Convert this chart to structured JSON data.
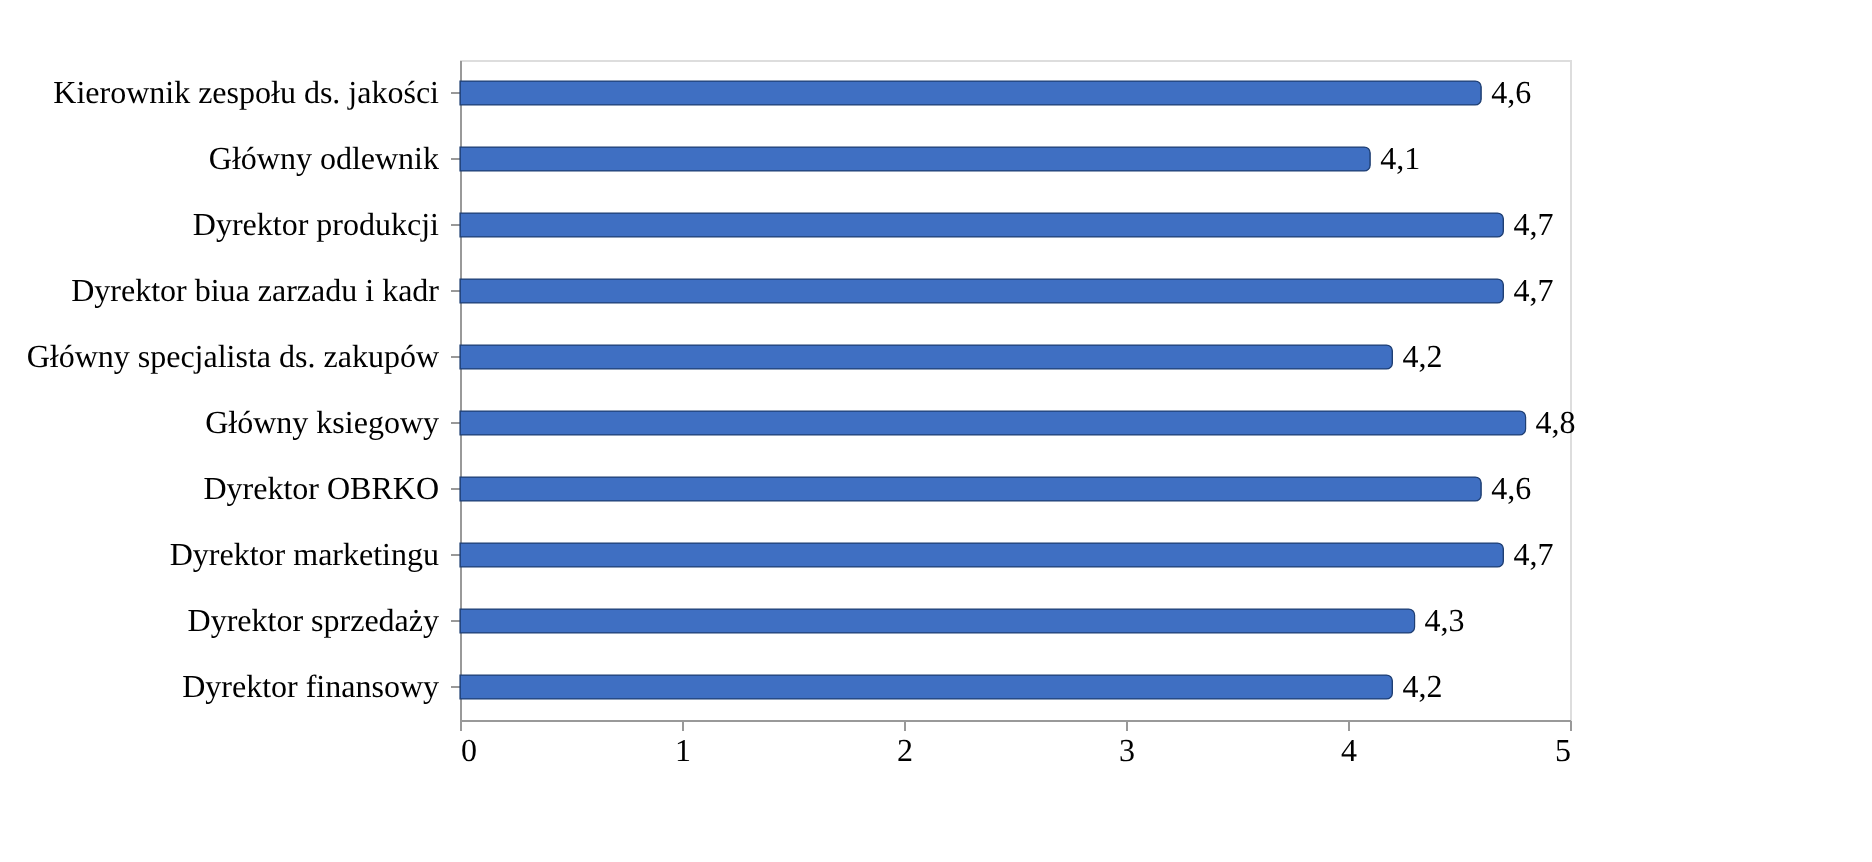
{
  "chart_data": {
    "type": "bar",
    "orientation": "horizontal",
    "categories": [
      "Kierownik zespołu ds. jakości",
      "Główny odlewnik",
      "Dyrektor produkcji",
      "Dyrektor biua zarzadu i kadr",
      "Główny specjalista ds. zakupów",
      "Główny ksiegowy",
      "Dyrektor OBRKO",
      "Dyrektor marketingu",
      "Dyrektor sprzedaży",
      "Dyrektor finansowy"
    ],
    "values": [
      4.6,
      4.1,
      4.7,
      4.7,
      4.2,
      4.8,
      4.6,
      4.7,
      4.3,
      4.2
    ],
    "value_labels": [
      "4,6",
      "4,1",
      "4,7",
      "4,7",
      "4,2",
      "4,8",
      "4,6",
      "4,7",
      "4,3",
      "4,2"
    ],
    "color": "#3f6fc2",
    "xlim": [
      0,
      5
    ],
    "xticks": [
      0,
      1,
      2,
      3,
      4,
      5
    ],
    "grid": false
  }
}
